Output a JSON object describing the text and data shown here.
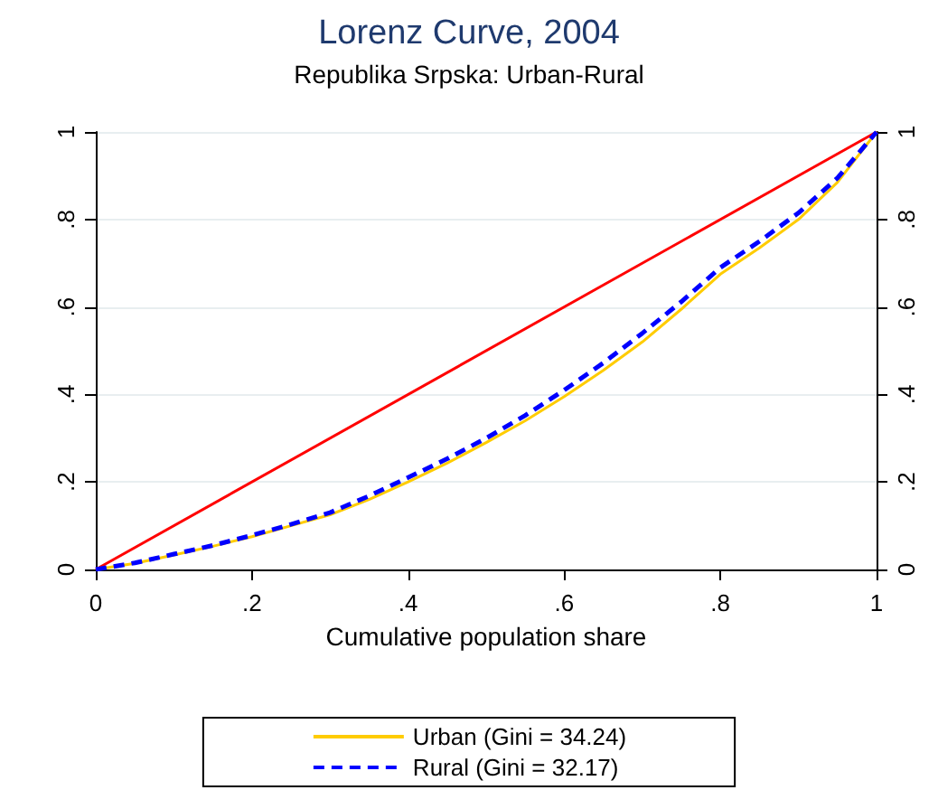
{
  "chart_data": {
    "type": "line",
    "title": "Lorenz Curve, 2004",
    "subtitle": "Republika Srpska: Urban-Rural",
    "xlabel": "Cumulative population share",
    "x": [
      0,
      0.05,
      0.1,
      0.15,
      0.2,
      0.25,
      0.3,
      0.35,
      0.4,
      0.45,
      0.5,
      0.55,
      0.6,
      0.65,
      0.7,
      0.75,
      0.8,
      0.85,
      0.9,
      0.95,
      1
    ],
    "series": [
      {
        "color": "#ff0000",
        "x": [
          0,
          1
        ],
        "values": [
          0,
          1
        ]
      },
      {
        "name": "Urban (Gini = 34.24)",
        "color": "#ffcc00",
        "line_style": "solid",
        "values": [
          0,
          0.014,
          0.033,
          0.053,
          0.075,
          0.1,
          0.125,
          0.16,
          0.2,
          0.243,
          0.29,
          0.34,
          0.395,
          0.455,
          0.52,
          0.595,
          0.675,
          0.735,
          0.8,
          0.885,
          1
        ]
      },
      {
        "name": "Rural (Gini = 32.17)",
        "color": "#0000ff",
        "line_style": "dashed",
        "values": [
          0,
          0.015,
          0.035,
          0.055,
          0.078,
          0.103,
          0.13,
          0.168,
          0.21,
          0.253,
          0.3,
          0.352,
          0.41,
          0.472,
          0.54,
          0.612,
          0.69,
          0.75,
          0.815,
          0.895,
          1
        ]
      }
    ],
    "xlim": [
      0,
      1
    ],
    "xticks": [
      0,
      {
        "value": 0.2,
        "label": ".2"
      },
      {
        "value": 0.4,
        "label": ".4"
      },
      {
        "value": 0.6,
        "label": ".6"
      },
      {
        "value": 0.8,
        "label": ".8"
      },
      1
    ],
    "ylim": [
      0,
      1
    ],
    "yticks": [
      0,
      {
        "value": 0.2,
        "label": ".2"
      },
      {
        "value": 0.4,
        "label": ".4"
      },
      {
        "value": 0.6,
        "label": ".6"
      },
      {
        "value": 0.8,
        "label": ".8"
      },
      1
    ],
    "y2lim": [
      0,
      1
    ],
    "y2ticks": [
      0,
      {
        "value": 0.2,
        "label": ".2"
      },
      {
        "value": 0.4,
        "label": ".4"
      },
      {
        "value": 0.6,
        "label": ".6"
      },
      {
        "value": 0.8,
        "label": ".8"
      },
      1
    ],
    "grid": "y",
    "legend": "bottom",
    "marker": "none"
  }
}
